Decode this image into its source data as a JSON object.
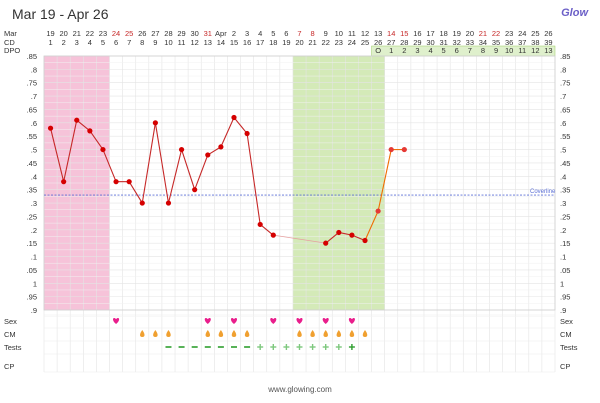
{
  "header": {
    "title": "Mar 19 - Apr 26",
    "logo": "Glow"
  },
  "footer": {
    "url": "www.glowing.com"
  },
  "colors": {
    "period_band": "#f5b8d2",
    "fertile_band": "#cfe8b0",
    "line": "#c62828",
    "point": "#d50000",
    "point_late": "#e53935",
    "coverline": "#5b6fd6",
    "sex": "#e91e8c",
    "cm": "#f0a030",
    "test_neg": "#2e9e2e",
    "test_pos": "#7ec87e",
    "weekend_red": "#c62828",
    "ovulation_box": "#dff0cc"
  },
  "chart_data": {
    "type": "line",
    "title": "Mar 19 - Apr 26",
    "row_labels": {
      "month": "Mar",
      "cd": "CD",
      "dpo": "DPO"
    },
    "dates": [
      "19",
      "20",
      "21",
      "22",
      "23",
      "24",
      "25",
      "26",
      "27",
      "28",
      "29",
      "30",
      "31",
      "Apr",
      "2",
      "3",
      "4",
      "5",
      "6",
      "7",
      "8",
      "9",
      "10",
      "11",
      "12",
      "13",
      "14",
      "15",
      "16",
      "17",
      "18",
      "19",
      "20",
      "21",
      "22",
      "23",
      "24",
      "25",
      "26"
    ],
    "date_red": [
      false,
      false,
      false,
      false,
      false,
      true,
      true,
      false,
      false,
      false,
      false,
      false,
      true,
      false,
      false,
      false,
      false,
      false,
      false,
      true,
      true,
      false,
      false,
      false,
      false,
      false,
      true,
      true,
      false,
      false,
      false,
      false,
      false,
      true,
      true,
      false,
      false,
      false,
      false
    ],
    "cd": [
      "1",
      "2",
      "3",
      "4",
      "5",
      "6",
      "7",
      "8",
      "9",
      "10",
      "11",
      "12",
      "13",
      "14",
      "15",
      "16",
      "17",
      "18",
      "19",
      "20",
      "21",
      "22",
      "23",
      "24",
      "25",
      "26",
      "27",
      "28",
      "29",
      "30",
      "31",
      "32",
      "33",
      "34",
      "35",
      "36",
      "37",
      "38",
      "39"
    ],
    "dpo": [
      "",
      "",
      "",
      "",
      "",
      "",
      "",
      "",
      "",
      "",
      "",
      "",
      "",
      "",
      "",
      "",
      "",
      "",
      "",
      "",
      "",
      "",
      "",
      "",
      "",
      "O",
      "1",
      "2",
      "3",
      "4",
      "5",
      "6",
      "7",
      "8",
      "9",
      "10",
      "11",
      "12",
      "13"
    ],
    "y_ticks": [
      ".85",
      ".8",
      ".75",
      ".7",
      ".65",
      ".6",
      ".55",
      ".5",
      ".45",
      ".4",
      ".35",
      ".3",
      ".25",
      ".2",
      ".15",
      ".1",
      ".05",
      "1",
      ".95",
      ".9"
    ],
    "ylim": [
      0.9,
      1.85
    ],
    "coverline_label": "Coverline",
    "coverline": 1.33,
    "period_days": [
      1,
      5
    ],
    "fertile_days": [
      20,
      26
    ],
    "temps": [
      {
        "cd": 1,
        "v": 1.58
      },
      {
        "cd": 2,
        "v": 1.38
      },
      {
        "cd": 3,
        "v": 1.61
      },
      {
        "cd": 4,
        "v": 1.57
      },
      {
        "cd": 5,
        "v": 1.5
      },
      {
        "cd": 6,
        "v": 1.38
      },
      {
        "cd": 7,
        "v": 1.38
      },
      {
        "cd": 8,
        "v": 1.3
      },
      {
        "cd": 9,
        "v": 1.6
      },
      {
        "cd": 10,
        "v": 1.3
      },
      {
        "cd": 11,
        "v": 1.5
      },
      {
        "cd": 12,
        "v": 1.35
      },
      {
        "cd": 13,
        "v": 1.48
      },
      {
        "cd": 14,
        "v": 1.51
      },
      {
        "cd": 15,
        "v": 1.62
      },
      {
        "cd": 16,
        "v": 1.56
      },
      {
        "cd": 17,
        "v": 1.22
      },
      {
        "cd": 18,
        "v": 1.18
      },
      {
        "cd": 22,
        "v": 1.15
      },
      {
        "cd": 23,
        "v": 1.19
      },
      {
        "cd": 24,
        "v": 1.18
      },
      {
        "cd": 25,
        "v": 1.16
      },
      {
        "cd": 26,
        "v": 1.27
      },
      {
        "cd": 27,
        "v": 1.5
      },
      {
        "cd": 28,
        "v": 1.5
      }
    ],
    "bottom_rows": {
      "sex": "Sex",
      "cm": "CM",
      "tests": "Tests",
      "cp": "CP"
    },
    "sex_days": [
      6,
      13,
      15,
      18,
      20,
      22,
      24
    ],
    "cm_days": [
      8,
      9,
      10,
      13,
      14,
      15,
      16,
      20,
      21,
      22,
      23,
      24,
      25
    ],
    "tests_neg_days": [
      10,
      11,
      12,
      13,
      14,
      15,
      16
    ],
    "tests_pos_days": [
      17,
      18,
      19,
      20,
      21,
      22,
      23,
      24
    ]
  }
}
